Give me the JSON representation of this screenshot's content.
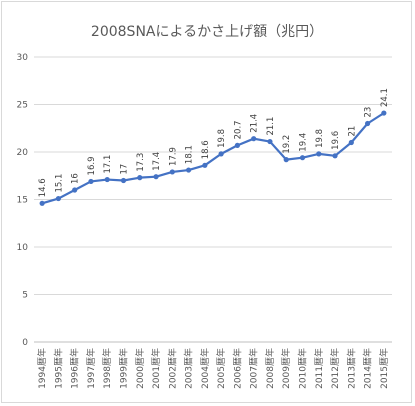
{
  "chart_data": {
    "type": "line",
    "title": "2008SNAによるかさ上げ額（兆円）",
    "xlabel": "",
    "ylabel": "",
    "ylim": [
      0,
      30
    ],
    "yticks": [
      0,
      5,
      10,
      15,
      20,
      25,
      30
    ],
    "grid": true,
    "legend": "none",
    "categories": [
      "1994暦年",
      "1995暦年",
      "1996暦年",
      "1997暦年",
      "1998暦年",
      "1999暦年",
      "2000暦年",
      "2001暦年",
      "2002暦年",
      "2003暦年",
      "2004暦年",
      "2005暦年",
      "2006暦年",
      "2007暦年",
      "2008暦年",
      "2009暦年",
      "2010暦年",
      "2011暦年",
      "2012暦年",
      "2013暦年",
      "2014暦年",
      "2015暦年"
    ],
    "values": [
      14.6,
      15.1,
      16,
      16.9,
      17.1,
      17,
      17.3,
      17.4,
      17.9,
      18.1,
      18.6,
      19.8,
      20.7,
      21.4,
      21.1,
      19.2,
      19.4,
      19.8,
      19.6,
      21,
      23,
      24.1
    ],
    "data_labels": [
      "14.6",
      "15.1",
      "16",
      "16.9",
      "17.1",
      "17",
      "17.3",
      "17.4",
      "17.9",
      "18.1",
      "18.6",
      "19.8",
      "20.7",
      "21.4",
      "21.1",
      "19.2",
      "19.4",
      "19.8",
      "19.6",
      "21",
      "23",
      "24.1"
    ],
    "color": "#4472c4"
  }
}
